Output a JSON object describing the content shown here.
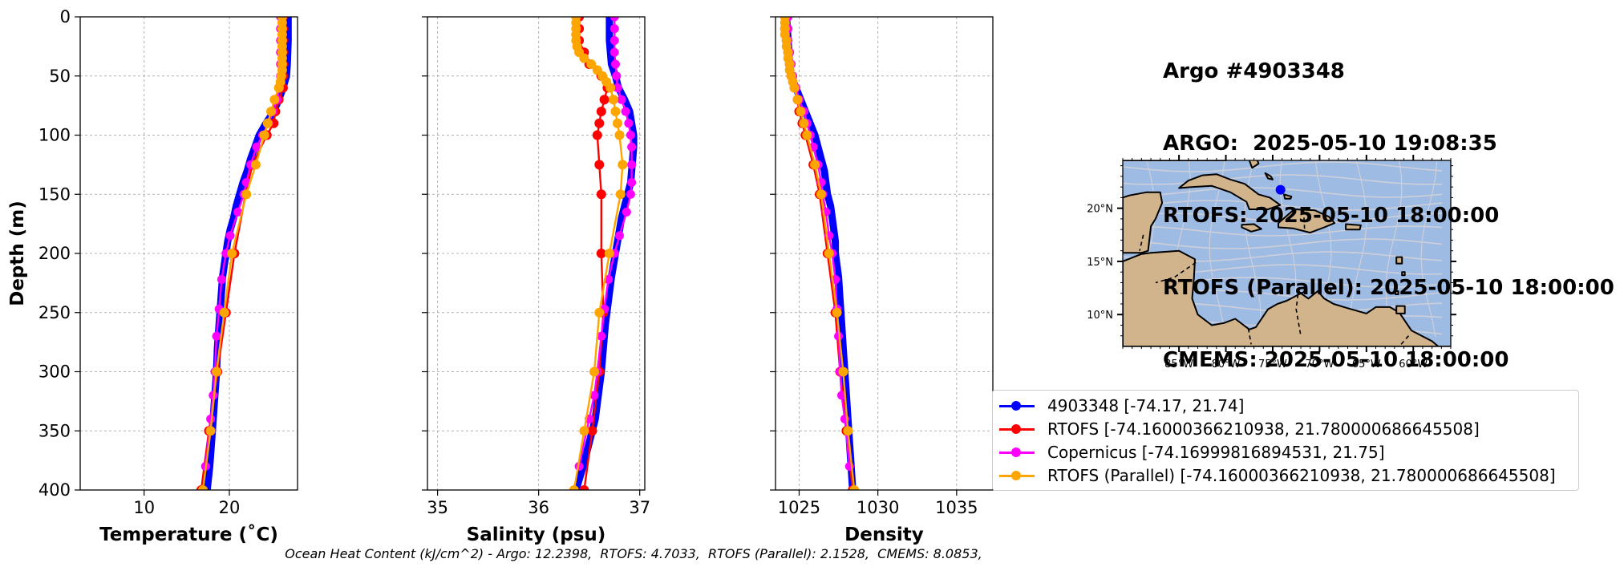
{
  "title_lines": [
    "Argo #4903348",
    "ARGO:  2025-05-10 19:08:35",
    "RTOFS: 2025-05-10 18:00:00",
    "RTOFS (Parallel): 2025-05-10 18:00:00",
    "CMEMS: 2025-05-10 18:00:00"
  ],
  "footer": "Ocean Heat Content (kJ/cm^2) - Argo: 12.2398,  RTOFS: 4.7033,  RTOFS (Parallel): 2.1528,  CMEMS: 8.0853,",
  "colors": {
    "argo": "#0000ff",
    "rtofs": "#ff0000",
    "copernicus": "#ff00ff",
    "parallel": "#ffa500",
    "ocean": "#9dbbe3",
    "land": "#d2b48c",
    "stream": "#cfcfd8"
  },
  "legend": [
    {
      "label": "4903348 [-74.17, 21.74]",
      "color": "#0000ff"
    },
    {
      "label": "RTOFS [-74.16000366210938, 21.780000686645508]",
      "color": "#ff0000"
    },
    {
      "label": "Copernicus [-74.16999816894531, 21.75]",
      "color": "#ff00ff"
    },
    {
      "label": "RTOFS (Parallel) [-74.16000366210938, 21.780000686645508]",
      "color": "#ffa500"
    }
  ],
  "chart_data": [
    {
      "type": "line",
      "xlabel": "Temperature (˚C)",
      "ylabel": "Depth (m)",
      "xlim": [
        2.5,
        28
      ],
      "ylim": [
        400,
        0
      ],
      "xticks": [
        10,
        20
      ],
      "yticks": [
        0,
        50,
        100,
        150,
        200,
        250,
        300,
        350,
        400
      ],
      "grid": true,
      "series": [
        {
          "name": "4903348",
          "color": "#0000ff",
          "depth": [
            0,
            20,
            40,
            50,
            60,
            70,
            80,
            90,
            100,
            110,
            120,
            130,
            140,
            150,
            160,
            170,
            180,
            190,
            200,
            220,
            240,
            260,
            280,
            300,
            320,
            340,
            360,
            380,
            400
          ],
          "values": [
            26.9,
            26.9,
            26.8,
            26.7,
            26.3,
            25.8,
            25.2,
            24.3,
            23.5,
            23.0,
            22.5,
            22.1,
            21.6,
            21.2,
            20.8,
            20.5,
            20.1,
            19.8,
            19.6,
            19.2,
            19.0,
            18.8,
            18.6,
            18.5,
            18.3,
            18.1,
            17.9,
            17.7,
            17.4
          ]
        },
        {
          "name": "RTOFS",
          "color": "#ff0000",
          "depth": [
            0,
            10,
            20,
            30,
            40,
            50,
            60,
            70,
            80,
            90,
            100,
            125,
            150,
            200,
            250,
            300,
            350,
            400
          ],
          "values": [
            26.3,
            26.3,
            26.3,
            26.3,
            26.3,
            26.3,
            26.3,
            25.8,
            25.4,
            25.2,
            24.4,
            22.7,
            21.9,
            20.6,
            19.6,
            18.6,
            17.6,
            16.7
          ]
        },
        {
          "name": "Copernicus",
          "color": "#ff00ff",
          "depth": [
            0,
            10,
            20,
            30,
            40,
            50,
            60,
            70,
            80,
            90,
            100,
            110,
            125,
            140,
            150,
            165,
            185,
            200,
            222,
            247,
            270,
            300,
            320,
            340,
            380
          ],
          "values": [
            26.0,
            26.0,
            26.0,
            26.0,
            26.0,
            26.0,
            25.9,
            25.6,
            25.1,
            24.6,
            23.9,
            23.2,
            22.5,
            22.0,
            21.7,
            21.0,
            20.1,
            19.6,
            19.1,
            18.8,
            18.5,
            18.3,
            18.1,
            17.8,
            17.2
          ]
        },
        {
          "name": "RTOFS (Parallel)",
          "color": "#ffa500",
          "depth": [
            0,
            5,
            10,
            15,
            20,
            25,
            30,
            35,
            40,
            45,
            50,
            55,
            60,
            70,
            80,
            90,
            100,
            125,
            150,
            200,
            250,
            300,
            350,
            400
          ],
          "values": [
            26.2,
            26.2,
            26.2,
            26.2,
            26.2,
            26.2,
            26.2,
            26.2,
            26.2,
            26.2,
            26.1,
            26.0,
            25.8,
            25.3,
            24.9,
            24.5,
            24.1,
            23.1,
            22.0,
            20.3,
            19.4,
            18.5,
            17.8,
            16.9
          ]
        }
      ]
    },
    {
      "type": "line",
      "xlabel": "Salinity (psu)",
      "xlim": [
        34.9,
        37.05
      ],
      "ylim": [
        400,
        0
      ],
      "xticks": [
        35,
        36,
        37
      ],
      "grid": true,
      "series": [
        {
          "name": "4903348",
          "color": "#0000ff",
          "depth": [
            0,
            20,
            40,
            50,
            60,
            70,
            80,
            90,
            100,
            110,
            120,
            130,
            140,
            150,
            160,
            170,
            180,
            190,
            200,
            220,
            240,
            260,
            280,
            300,
            320,
            340,
            360,
            380,
            400
          ],
          "values": [
            36.7,
            36.7,
            36.72,
            36.76,
            36.79,
            36.85,
            36.9,
            36.92,
            36.94,
            36.94,
            36.93,
            36.92,
            36.91,
            36.88,
            36.85,
            36.82,
            36.8,
            36.78,
            36.76,
            36.72,
            36.69,
            36.66,
            36.64,
            36.62,
            36.59,
            36.56,
            36.5,
            36.44,
            36.37
          ]
        },
        {
          "name": "RTOFS",
          "color": "#ff0000",
          "depth": [
            0,
            10,
            20,
            30,
            40,
            50,
            60,
            70,
            80,
            90,
            100,
            125,
            150,
            200,
            250,
            300,
            350,
            400
          ],
          "values": [
            36.4,
            36.4,
            36.4,
            36.45,
            36.5,
            36.62,
            36.68,
            36.65,
            36.62,
            36.6,
            36.58,
            36.6,
            36.62,
            36.62,
            36.64,
            36.6,
            36.53,
            36.45
          ]
        },
        {
          "name": "Copernicus",
          "color": "#ff00ff",
          "depth": [
            0,
            10,
            20,
            30,
            40,
            50,
            60,
            70,
            80,
            90,
            100,
            110,
            125,
            140,
            150,
            165,
            185,
            200,
            222,
            247,
            270,
            300,
            320,
            340,
            380
          ],
          "values": [
            36.75,
            36.75,
            36.75,
            36.75,
            36.76,
            36.77,
            36.78,
            36.82,
            36.86,
            36.89,
            36.91,
            36.92,
            36.92,
            36.92,
            36.91,
            36.87,
            36.8,
            36.75,
            36.69,
            36.65,
            36.62,
            36.58,
            36.55,
            36.5,
            36.4
          ]
        },
        {
          "name": "RTOFS (Parallel)",
          "color": "#ffa500",
          "depth": [
            0,
            5,
            10,
            15,
            20,
            25,
            30,
            35,
            40,
            45,
            50,
            55,
            60,
            70,
            80,
            90,
            100,
            125,
            150,
            200,
            250,
            300,
            350,
            400
          ],
          "values": [
            36.37,
            36.37,
            36.37,
            36.37,
            36.37,
            36.38,
            36.4,
            36.45,
            36.52,
            36.58,
            36.63,
            36.67,
            36.71,
            36.74,
            36.76,
            36.78,
            36.8,
            36.83,
            36.81,
            36.7,
            36.6,
            36.55,
            36.45,
            36.35
          ]
        }
      ]
    },
    {
      "type": "line",
      "xlabel": "Density",
      "xlim": [
        1023.5,
        1037.3
      ],
      "ylim": [
        400,
        0
      ],
      "xticks": [
        1025,
        1030,
        1035
      ],
      "grid": true,
      "series": [
        {
          "name": "4903348",
          "color": "#0000ff",
          "depth": [
            0,
            20,
            40,
            50,
            60,
            70,
            80,
            90,
            100,
            110,
            120,
            130,
            140,
            150,
            160,
            170,
            180,
            190,
            200,
            220,
            240,
            260,
            280,
            300,
            320,
            340,
            360,
            380,
            400
          ],
          "values": [
            1024.2,
            1024.3,
            1024.4,
            1024.5,
            1024.8,
            1025.1,
            1025.4,
            1025.7,
            1026.0,
            1026.2,
            1026.4,
            1026.6,
            1026.7,
            1026.8,
            1027.0,
            1027.1,
            1027.2,
            1027.3,
            1027.3,
            1027.5,
            1027.6,
            1027.7,
            1027.8,
            1027.9,
            1028.0,
            1028.1,
            1028.2,
            1028.3,
            1028.4
          ]
        },
        {
          "name": "RTOFS",
          "color": "#ff0000",
          "depth": [
            0,
            10,
            20,
            30,
            40,
            50,
            60,
            70,
            80,
            90,
            100,
            125,
            150,
            200,
            250,
            300,
            350,
            400
          ],
          "values": [
            1024.1,
            1024.1,
            1024.2,
            1024.3,
            1024.4,
            1024.5,
            1024.7,
            1024.9,
            1025.0,
            1025.2,
            1025.4,
            1025.9,
            1026.3,
            1026.8,
            1027.3,
            1027.6,
            1028.0,
            1028.4
          ]
        },
        {
          "name": "Copernicus",
          "color": "#ff00ff",
          "depth": [
            0,
            10,
            20,
            30,
            40,
            50,
            60,
            70,
            80,
            90,
            100,
            110,
            125,
            140,
            150,
            165,
            185,
            200,
            222,
            247,
            270,
            300,
            320,
            340,
            380
          ],
          "values": [
            1024.3,
            1024.3,
            1024.3,
            1024.4,
            1024.5,
            1024.6,
            1024.8,
            1025.0,
            1025.3,
            1025.5,
            1025.7,
            1025.9,
            1026.2,
            1026.4,
            1026.5,
            1026.7,
            1026.9,
            1027.1,
            1027.3,
            1027.4,
            1027.5,
            1027.6,
            1027.7,
            1027.9,
            1028.2
          ]
        },
        {
          "name": "RTOFS (Parallel)",
          "color": "#ffa500",
          "depth": [
            0,
            5,
            10,
            15,
            20,
            25,
            30,
            35,
            40,
            45,
            50,
            55,
            60,
            70,
            80,
            90,
            100,
            125,
            150,
            200,
            250,
            300,
            350,
            400
          ],
          "values": [
            1024.1,
            1024.1,
            1024.1,
            1024.1,
            1024.2,
            1024.2,
            1024.3,
            1024.3,
            1024.4,
            1024.4,
            1024.5,
            1024.6,
            1024.7,
            1024.9,
            1025.1,
            1025.3,
            1025.5,
            1026.0,
            1026.4,
            1026.9,
            1027.4,
            1027.8,
            1028.1,
            1028.5
          ]
        }
      ]
    },
    {
      "type": "map",
      "lon_range": [
        -91,
        -56
      ],
      "lat_range": [
        7,
        24.5
      ],
      "xticks": [
        "85°W",
        "80°W",
        "75°W",
        "70°W",
        "65°W",
        "60°W"
      ],
      "xtick_values": [
        -85,
        -80,
        -75,
        -70,
        -65,
        -60
      ],
      "yticks": [
        "20°N",
        "15°N",
        "10°N"
      ],
      "ytick_values": [
        20,
        15,
        10
      ],
      "marker": {
        "lon": -74.17,
        "lat": 21.74,
        "color": "#0000ff"
      }
    }
  ]
}
